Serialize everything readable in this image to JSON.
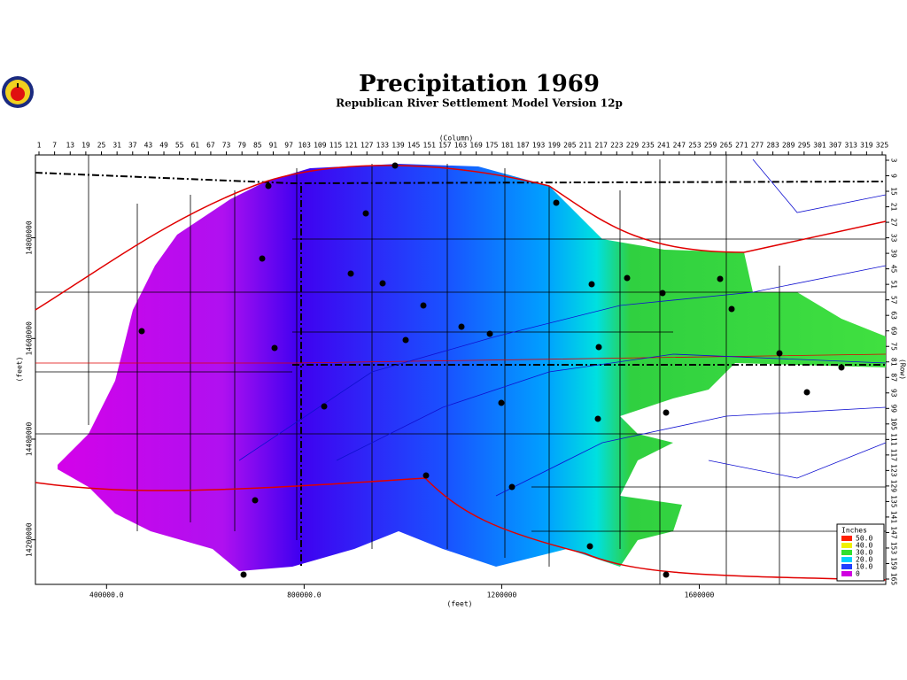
{
  "title": "Precipitation  1969",
  "subtitle": "Republican River Settlement Model Version 12p",
  "column_label": "(Column)",
  "row_label": "(Row)",
  "x_label": "(feet)",
  "y_label": "(feet)",
  "column_ticks": [
    1,
    7,
    13,
    19,
    25,
    31,
    37,
    43,
    49,
    55,
    61,
    67,
    73,
    79,
    85,
    91,
    97,
    103,
    109,
    115,
    121,
    127,
    133,
    139,
    145,
    151,
    157,
    163,
    169,
    175,
    181,
    187,
    193,
    199,
    205,
    211,
    217,
    223,
    229,
    235,
    241,
    247,
    253,
    259,
    265,
    271,
    277,
    283,
    289,
    295,
    301,
    307,
    313,
    319,
    325
  ],
  "row_ticks": [
    3,
    9,
    15,
    21,
    27,
    33,
    39,
    45,
    51,
    57,
    63,
    69,
    75,
    81,
    87,
    93,
    99,
    105,
    111,
    117,
    123,
    129,
    135,
    141,
    147,
    153,
    159,
    165
  ],
  "xlim": [
    256000,
    1977500
  ],
  "ylim": [
    14111500,
    14964600
  ],
  "xticks": [
    {
      "value": 400000,
      "label": "400000.0"
    },
    {
      "value": 800000,
      "label": "800000.0"
    },
    1200000,
    1600000
  ],
  "yticks": [
    14200000,
    14400000,
    14600000,
    14800000
  ],
  "legend": {
    "title": "Inches",
    "items": [
      {
        "label": "50.0",
        "color": "#ff2000"
      },
      {
        "label": "40.0",
        "color": "#f0f000"
      },
      {
        "label": "30.0",
        "color": "#30e030"
      },
      {
        "label": "20.0",
        "color": "#00d0ff"
      },
      {
        "label": "10.0",
        "color": "#2040ff"
      },
      {
        "label": "0",
        "color": "#d000e0"
      }
    ]
  }
}
